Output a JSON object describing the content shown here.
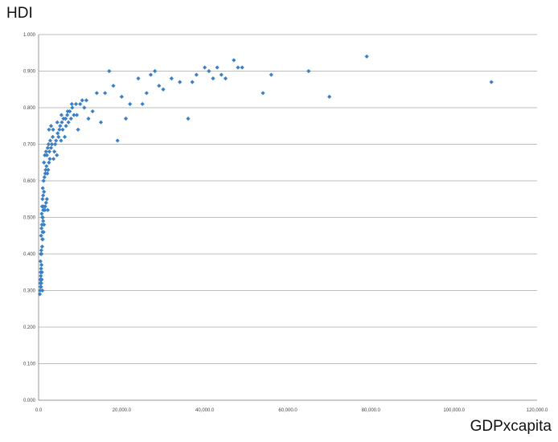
{
  "chart_data": {
    "type": "scatter",
    "title": "",
    "xlabel": "GDPxcapita",
    "ylabel": "HDI",
    "xlim": [
      0,
      120000
    ],
    "ylim": [
      0,
      1
    ],
    "grid": "horizontal",
    "color": "#3b7fc4",
    "yticks": [
      "0.000",
      "0.100",
      "0.200",
      "0.300",
      "0.400",
      "0.500",
      "0.600",
      "0.700",
      "0.800",
      "0.900",
      "1.000"
    ],
    "xticks": [
      "0.0",
      "20,000.0",
      "40,000.0",
      "60,000.0",
      "80,000.0",
      "100,000.0",
      "120,000.0"
    ],
    "series": [
      {
        "points": [
          [
            300,
            0.29
          ],
          [
            350,
            0.3
          ],
          [
            400,
            0.32
          ],
          [
            450,
            0.31
          ],
          [
            500,
            0.33
          ],
          [
            550,
            0.34
          ],
          [
            600,
            0.31
          ],
          [
            650,
            0.32
          ],
          [
            400,
            0.33
          ],
          [
            500,
            0.35
          ],
          [
            600,
            0.36
          ],
          [
            700,
            0.37
          ],
          [
            750,
            0.33
          ],
          [
            800,
            0.35
          ],
          [
            450,
            0.38
          ],
          [
            550,
            0.4
          ],
          [
            650,
            0.41
          ],
          [
            700,
            0.4
          ],
          [
            850,
            0.42
          ],
          [
            900,
            0.44
          ],
          [
            950,
            0.46
          ],
          [
            600,
            0.45
          ],
          [
            700,
            0.47
          ],
          [
            800,
            0.48
          ],
          [
            900,
            0.5
          ],
          [
            1000,
            0.5
          ],
          [
            1100,
            0.52
          ],
          [
            1200,
            0.53
          ],
          [
            750,
            0.51
          ],
          [
            850,
            0.53
          ],
          [
            950,
            0.55
          ],
          [
            1100,
            0.56
          ],
          [
            1300,
            0.57
          ],
          [
            1500,
            0.52
          ],
          [
            1600,
            0.53
          ],
          [
            1800,
            0.54
          ],
          [
            2000,
            0.55
          ],
          [
            2200,
            0.52
          ],
          [
            1000,
            0.58
          ],
          [
            1200,
            0.6
          ],
          [
            1400,
            0.61
          ],
          [
            1600,
            0.62
          ],
          [
            1700,
            0.63
          ],
          [
            1900,
            0.64
          ],
          [
            2100,
            0.62
          ],
          [
            2300,
            0.63
          ],
          [
            2500,
            0.65
          ],
          [
            2700,
            0.66
          ],
          [
            1300,
            0.65
          ],
          [
            1500,
            0.67
          ],
          [
            1800,
            0.68
          ],
          [
            2000,
            0.67
          ],
          [
            2200,
            0.69
          ],
          [
            2400,
            0.7
          ],
          [
            2600,
            0.68
          ],
          [
            2800,
            0.71
          ],
          [
            3000,
            0.69
          ],
          [
            3200,
            0.7
          ],
          [
            3400,
            0.72
          ],
          [
            3600,
            0.66
          ],
          [
            3800,
            0.68
          ],
          [
            4000,
            0.7
          ],
          [
            4200,
            0.71
          ],
          [
            4400,
            0.67
          ],
          [
            4600,
            0.73
          ],
          [
            4800,
            0.72
          ],
          [
            5000,
            0.74
          ],
          [
            5200,
            0.75
          ],
          [
            5400,
            0.71
          ],
          [
            5600,
            0.76
          ],
          [
            5800,
            0.74
          ],
          [
            6000,
            0.77
          ],
          [
            6300,
            0.72
          ],
          [
            6600,
            0.75
          ],
          [
            6900,
            0.78
          ],
          [
            7200,
            0.76
          ],
          [
            7500,
            0.79
          ],
          [
            7800,
            0.77
          ],
          [
            8100,
            0.8
          ],
          [
            8500,
            0.78
          ],
          [
            9000,
            0.81
          ],
          [
            9500,
            0.74
          ],
          [
            10000,
            0.81
          ],
          [
            10500,
            0.82
          ],
          [
            11000,
            0.8
          ],
          [
            12000,
            0.77
          ],
          [
            13000,
            0.79
          ],
          [
            14000,
            0.84
          ],
          [
            15000,
            0.76
          ],
          [
            16000,
            0.84
          ],
          [
            17000,
            0.9
          ],
          [
            18000,
            0.86
          ],
          [
            19000,
            0.71
          ],
          [
            20000,
            0.83
          ],
          [
            21000,
            0.77
          ],
          [
            22000,
            0.81
          ],
          [
            24000,
            0.88
          ],
          [
            25000,
            0.81
          ],
          [
            26000,
            0.84
          ],
          [
            27000,
            0.89
          ],
          [
            28000,
            0.9
          ],
          [
            29000,
            0.86
          ],
          [
            30000,
            0.85
          ],
          [
            32000,
            0.88
          ],
          [
            34000,
            0.87
          ],
          [
            36000,
            0.77
          ],
          [
            37000,
            0.87
          ],
          [
            38000,
            0.89
          ],
          [
            40000,
            0.91
          ],
          [
            41000,
            0.9
          ],
          [
            42000,
            0.88
          ],
          [
            43000,
            0.91
          ],
          [
            44000,
            0.89
          ],
          [
            45000,
            0.88
          ],
          [
            47000,
            0.93
          ],
          [
            48000,
            0.91
          ],
          [
            49000,
            0.91
          ],
          [
            54000,
            0.84
          ],
          [
            56000,
            0.89
          ],
          [
            65000,
            0.9
          ],
          [
            70000,
            0.83
          ],
          [
            79000,
            0.94
          ],
          [
            109000,
            0.87
          ],
          [
            1000,
            0.44
          ],
          [
            1200,
            0.46
          ],
          [
            1100,
            0.49
          ],
          [
            900,
            0.3
          ],
          [
            1300,
            0.48
          ],
          [
            2500,
            0.74
          ],
          [
            3000,
            0.75
          ],
          [
            3500,
            0.74
          ],
          [
            4500,
            0.76
          ],
          [
            5500,
            0.78
          ],
          [
            6500,
            0.77
          ],
          [
            7000,
            0.79
          ],
          [
            8000,
            0.81
          ],
          [
            9200,
            0.78
          ],
          [
            11500,
            0.82
          ]
        ]
      }
    ]
  }
}
